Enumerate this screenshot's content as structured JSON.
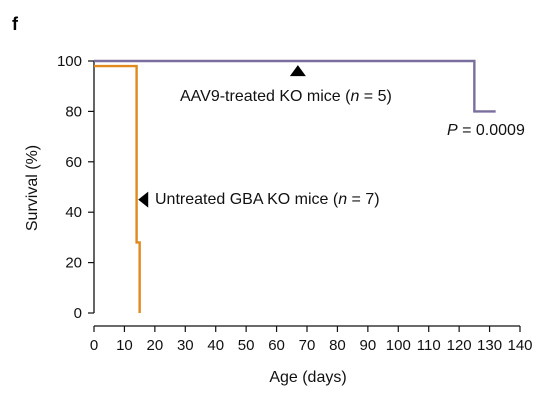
{
  "panel_label": "f",
  "chart_data": {
    "type": "line",
    "title": "",
    "xlabel": "Age (days)",
    "ylabel": "Survival (%)",
    "xlim": [
      0,
      140
    ],
    "ylim": [
      0,
      100
    ],
    "xticks": [
      0,
      10,
      20,
      30,
      40,
      50,
      60,
      70,
      80,
      90,
      100,
      110,
      120,
      130,
      140
    ],
    "yticks": [
      0,
      20,
      40,
      60,
      80,
      100
    ],
    "grid": false,
    "series": [
      {
        "name": "Untreated GBA KO mice (n = 7)",
        "color": "#e08a1e",
        "points": [
          [
            0,
            98
          ],
          [
            14,
            98
          ],
          [
            14,
            28
          ],
          [
            15,
            28
          ],
          [
            15,
            0
          ]
        ]
      },
      {
        "name": "AAV9-treated KO mice (n = 5)",
        "color": "#7a6e9e",
        "points": [
          [
            0,
            100
          ],
          [
            125,
            100
          ],
          [
            125,
            80
          ],
          [
            132,
            80
          ]
        ]
      }
    ],
    "annotations": {
      "aav": {
        "prefix": "AAV9-treated KO mice (",
        "italic": "n",
        "suffix": " = 5)",
        "marker_x": 67,
        "marker_y": 96,
        "marker_direction": "up"
      },
      "untreated": {
        "prefix": "Untreated GBA KO mice (",
        "italic": "n",
        "suffix": " = 7)",
        "marker_x": 16.5,
        "marker_y": 45,
        "marker_direction": "left"
      },
      "pvalue": {
        "italic": "P",
        "suffix": " = 0.0009"
      }
    }
  }
}
